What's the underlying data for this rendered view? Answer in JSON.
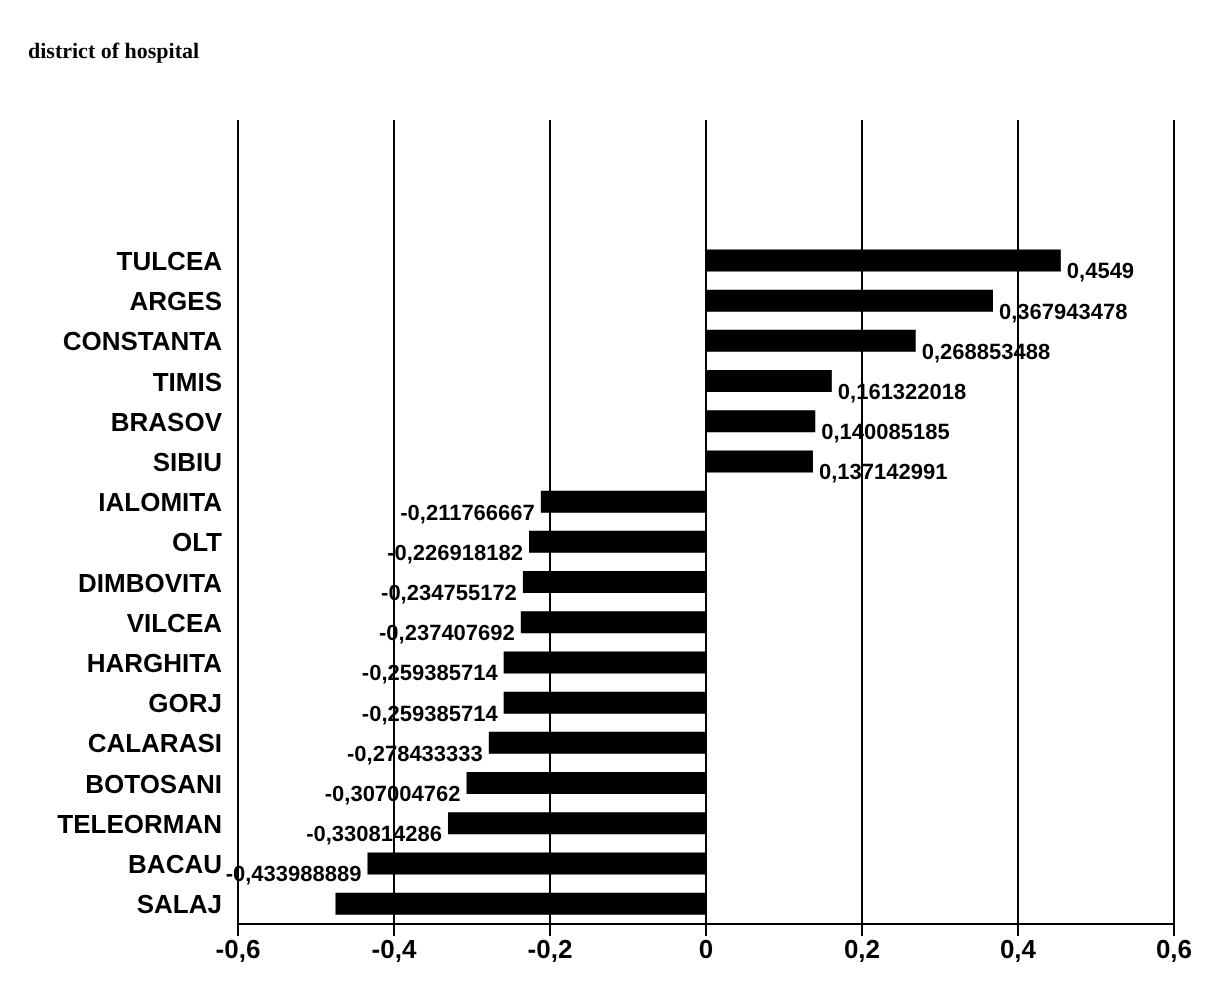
{
  "chart_data": {
    "type": "bar",
    "orientation": "horizontal",
    "title": "district of hospital",
    "categories": [
      null,
      null,
      null,
      "TULCEA",
      "ARGES",
      "CONSTANTA",
      "TIMIS",
      "BRASOV",
      "SIBIU",
      "IALOMITA",
      "OLT",
      "DIMBOVITA",
      "VILCEA",
      "HARGHITA",
      "GORJ",
      "CALARASI",
      "BOTOSANI",
      "TELEORMAN",
      "BACAU",
      "SALAJ"
    ],
    "values": [
      null,
      null,
      null,
      0.4549,
      0.367943478,
      0.268853488,
      0.161322018,
      0.140085185,
      0.137142991,
      -0.211766667,
      -0.226918182,
      -0.234755172,
      -0.237407692,
      -0.259385714,
      -0.259385714,
      -0.278433333,
      -0.307004762,
      -0.330814286,
      -0.433988889,
      -0.475
    ],
    "value_labels": [
      null,
      null,
      null,
      "0,4549",
      "0,367943478",
      "0,268853488",
      "0,161322018",
      "0,140085185",
      "0,137142991",
      "-0,211766667",
      "-0,226918182",
      "-0,234755172",
      "-0,237407692",
      "-0,259385714",
      "-0,259385714",
      "-0,278433333",
      "-0,307004762",
      "-0,330814286",
      "-0,433988889",
      null
    ],
    "color": "#000000",
    "xlim": [
      -0.6,
      0.6
    ],
    "xticks": [
      {
        "value": -0.6,
        "label": "-0,6"
      },
      {
        "value": -0.4,
        "label": "-0,4"
      },
      {
        "value": -0.2,
        "label": "-0,2"
      },
      0,
      {
        "value": 0.2,
        "label": "0,2"
      },
      {
        "value": 0.4,
        "label": "0,4"
      },
      {
        "value": 0.6,
        "label": "0,6"
      }
    ],
    "grid": "x"
  }
}
